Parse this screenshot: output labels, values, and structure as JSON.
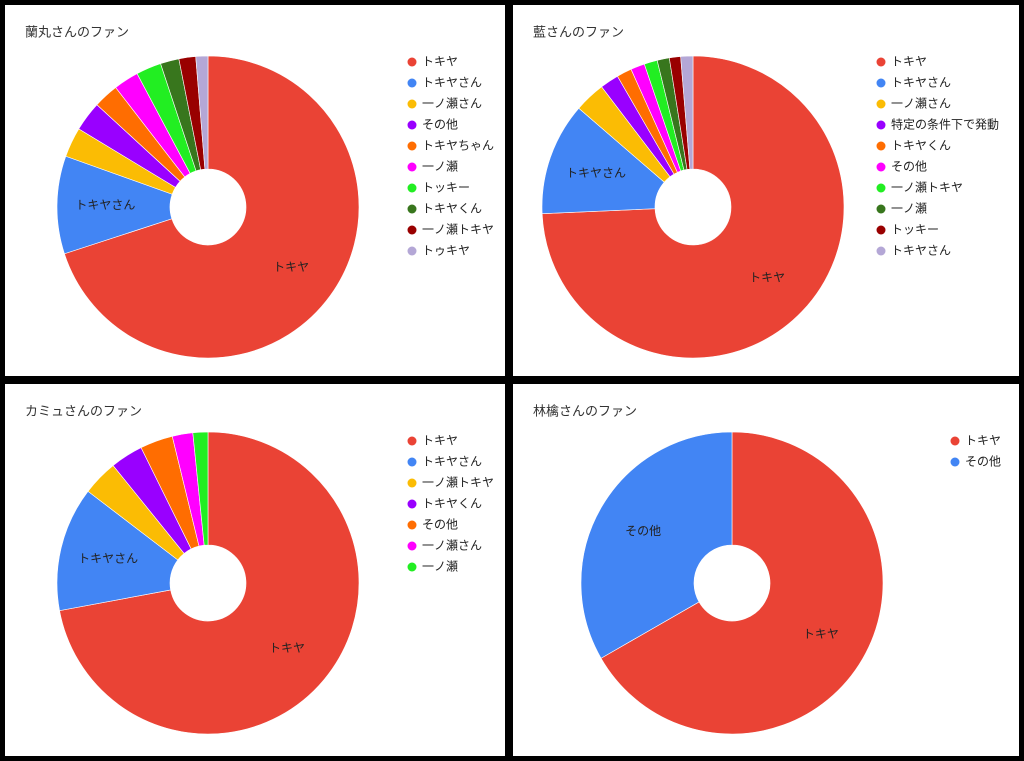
{
  "chart_data": [
    {
      "type": "pie",
      "title": "蘭丸さんのファン",
      "categories": [
        "トキヤ",
        "トキヤさん",
        "一ノ瀬さん",
        "その他",
        "トキヤちゃん",
        "一ノ瀬",
        "トッキー",
        "トキヤくん",
        "一ノ瀬トキヤ",
        "トゥキヤ"
      ],
      "values": [
        70.2,
        10.5,
        3.2,
        3.2,
        2.7,
        2.7,
        2.7,
        2,
        1.8,
        1.3
      ],
      "colors": [
        "#ea4335",
        "#4285f4",
        "#fbbc04",
        "#9900ff",
        "#ff6d01",
        "#ff00ff",
        "#22ee22",
        "#38761d",
        "#990000",
        "#b4a7d6"
      ]
    },
    {
      "type": "pie",
      "title": "藍さんのファン",
      "categories": [
        "トキヤ",
        "トキヤさん",
        "一ノ瀬さん",
        "特定の条件下で発動",
        "トキヤくん",
        "その他",
        "一ノ瀬トキヤ",
        "一ノ瀬",
        "トッキー",
        "トキヤさん"
      ],
      "values": [
        74,
        12,
        3.3,
        2,
        1.6,
        1.5,
        1.4,
        1.3,
        1.2,
        1.3
      ],
      "colors": [
        "#ea4335",
        "#4285f4",
        "#fbbc04",
        "#9900ff",
        "#ff6d01",
        "#ff00ff",
        "#22ee22",
        "#38761d",
        "#990000",
        "#b4a7d6"
      ]
    },
    {
      "type": "pie",
      "title": "カミュさんのファン",
      "categories": [
        "トキヤ",
        "トキヤさん",
        "一ノ瀬トキヤ",
        "トキヤくん",
        "その他",
        "一ノ瀬さん",
        "一ノ瀬"
      ],
      "values": [
        72,
        13.3,
        3.8,
        3.5,
        3.5,
        2.2,
        1.6
      ],
      "colors": [
        "#ea4335",
        "#4285f4",
        "#fbbc04",
        "#9900ff",
        "#ff6d01",
        "#ff00ff",
        "#22ee22"
      ]
    },
    {
      "type": "pie",
      "title": "林檎さんのファン",
      "categories": [
        "トキヤ",
        "その他"
      ],
      "values": [
        66.7,
        33.3
      ],
      "colors": [
        "#ea4335",
        "#4285f4"
      ]
    }
  ]
}
